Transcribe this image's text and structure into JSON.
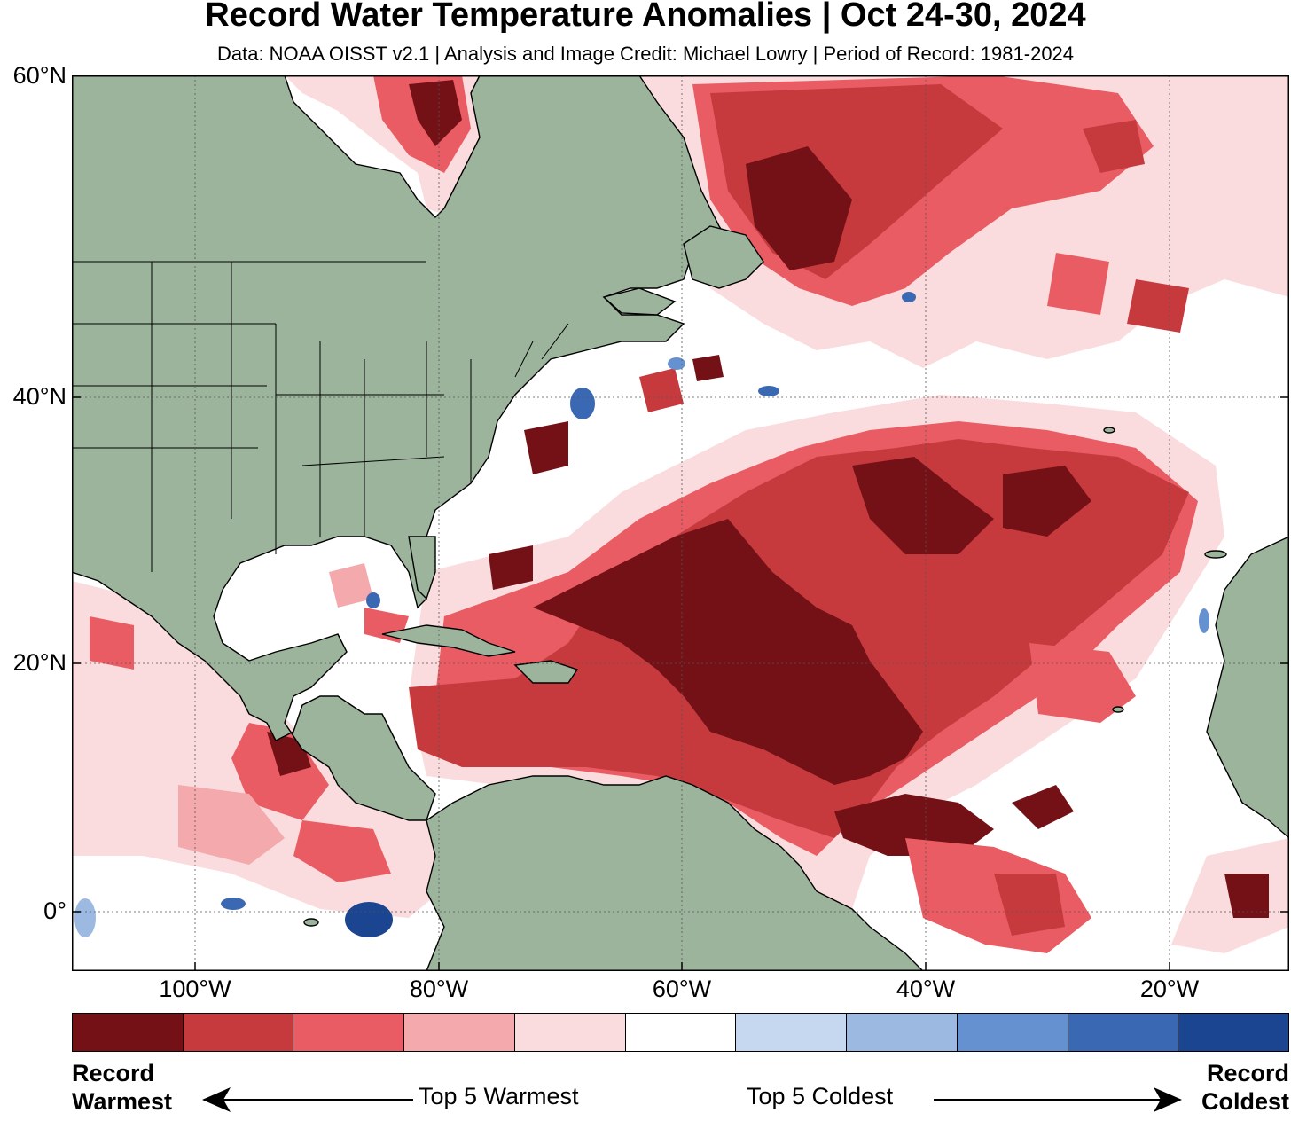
{
  "title": "Record Water Temperature Anomalies | Oct 24-30, 2024",
  "subtitle": "Data: NOAA OISST v2.1 | Analysis and Image Credit: Michael Lowry | Period of Record: 1981-2024",
  "lat_labels": [
    "60°N",
    "40°N",
    "20°N",
    "0°"
  ],
  "lon_labels": [
    "100°W",
    "80°W",
    "60°W",
    "40°W",
    "20°W"
  ],
  "legend": {
    "colors": [
      "#741116",
      "#c63a3e",
      "#ea5c63",
      "#f4a9ad",
      "#fbdcde",
      "#ffffff",
      "#c6d8ef",
      "#9cb9e2",
      "#6591d0",
      "#3a68b3",
      "#1b4590"
    ],
    "left_top": "Record",
    "left_bottom": "Warmest",
    "mid_left": "Top 5 Warmest",
    "mid_right": "Top 5 Coldest",
    "right_top": "Record",
    "right_bottom": "Coldest"
  },
  "colors": {
    "land": "#9db49c",
    "record_warm": "#741116",
    "warm2": "#c63a3e",
    "warm3": "#ea5c63",
    "warm4": "#f4a9ad",
    "warm5": "#fbdcde",
    "cold": "#3a68b3"
  }
}
